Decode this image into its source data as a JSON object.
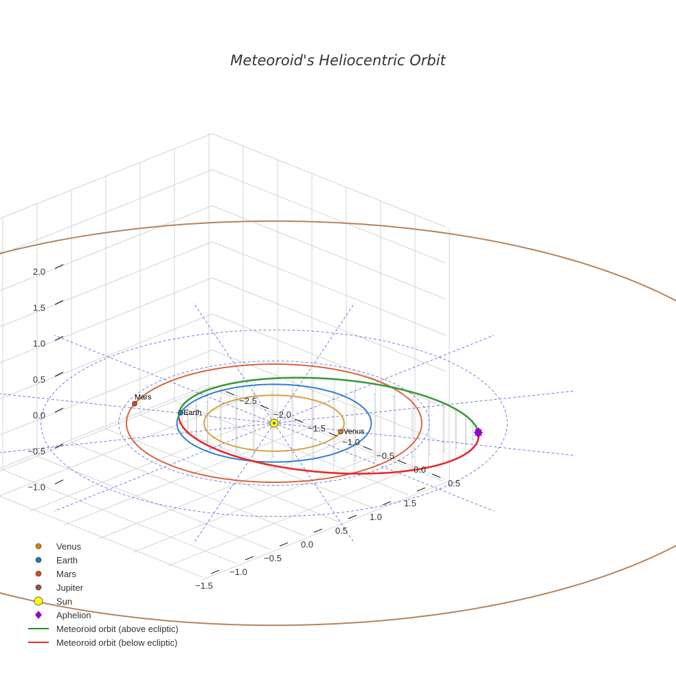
{
  "chart_data": {
    "type": "scatter",
    "title": "Meteoroid's Heliocentric Orbit",
    "axes": {
      "x_ticks": [
        -1.5,
        -1.0,
        -0.5,
        0.0,
        0.5,
        1.0,
        1.5
      ],
      "x_tick_labels": [
        "−1.5",
        "−1.0",
        "−0.5",
        "0.0",
        "0.5",
        "1.0",
        "1.5"
      ],
      "y_ticks": [
        -2.5,
        -2.0,
        -1.5,
        -1.0,
        -0.5,
        0.0,
        0.5
      ],
      "y_tick_labels": [
        "−2.5",
        "−2.0",
        "−1.5",
        "−1.0",
        "−0.5",
        "0.0",
        "0.5"
      ],
      "z_ticks": [
        2.0,
        1.5,
        1.0,
        0.5,
        0.0,
        -0.5,
        -1.0
      ],
      "z_tick_labels": [
        "2.0",
        "1.5",
        "1.0",
        "0.5",
        "0.0",
        "−0.5",
        "−1.0"
      ],
      "xlim": [
        -1.8,
        1.8
      ],
      "ylim": [
        -2.7,
        0.7
      ],
      "zlim": [
        -1.2,
        2.3
      ],
      "grid": true
    },
    "planet_orbits": [
      {
        "name": "Venus",
        "radius_au": 0.72,
        "color": "#d4a040"
      },
      {
        "name": "Earth",
        "radius_au": 1.0,
        "color": "#2e7fd4"
      },
      {
        "name": "Mars",
        "radius_au": 1.52,
        "color": "#d9653b"
      },
      {
        "name": "Jupiter",
        "radius_au": 5.2,
        "color": "#b5835a"
      }
    ],
    "planet_positions": [
      {
        "name": "Venus",
        "label": "Venus",
        "color": "#d4800a"
      },
      {
        "name": "Earth",
        "label": "Earth",
        "color": "#1f77b4"
      },
      {
        "name": "Mars",
        "label": "Mars",
        "color": "#c8501e"
      }
    ],
    "ecliptic_reference_circles_au": [
      1.6,
      2.4
    ],
    "meteoroid_orbit": {
      "above_color": "#3a9a3a",
      "below_color": "#e8282a"
    },
    "aphelion": {
      "color": "#9400d3"
    },
    "legend": [
      {
        "label": "Venus",
        "marker": "circle",
        "color": "#d4800a"
      },
      {
        "label": "Earth",
        "marker": "circle",
        "color": "#1f77b4"
      },
      {
        "label": "Mars",
        "marker": "circle",
        "color": "#c8501e"
      },
      {
        "label": "Jupiter",
        "marker": "circle",
        "color": "#a0522d"
      },
      {
        "label": "Sun",
        "marker": "circle-large",
        "color": "#ffff00"
      },
      {
        "label": "Aphelion",
        "marker": "diamond",
        "color": "#9400d3"
      },
      {
        "label": "Meteoroid orbit (above ecliptic)",
        "marker": "line",
        "color": "#228b22"
      },
      {
        "label": "Meteoroid orbit (below ecliptic)",
        "marker": "line",
        "color": "#e8282a"
      }
    ]
  }
}
